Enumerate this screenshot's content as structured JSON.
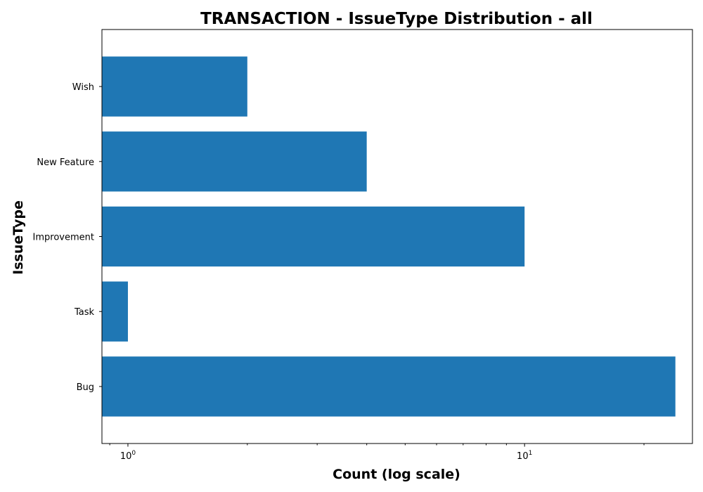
{
  "chart_data": {
    "type": "bar",
    "orientation": "horizontal",
    "title": "TRANSACTION - IssueType Distribution - all",
    "xlabel": "Count (log scale)",
    "ylabel": "IssueType",
    "xscale": "log",
    "xlim": [
      0.86,
      26.5
    ],
    "categories": [
      "Bug",
      "Task",
      "Improvement",
      "New Feature",
      "Wish"
    ],
    "values": [
      24,
      1,
      10,
      4,
      2
    ],
    "x_major_ticks": [
      {
        "value": 1,
        "base": "10",
        "exp": "0"
      },
      {
        "value": 10,
        "base": "10",
        "exp": "1"
      }
    ],
    "bar_color": "#1f77b4",
    "grid": false,
    "legend": "none"
  }
}
